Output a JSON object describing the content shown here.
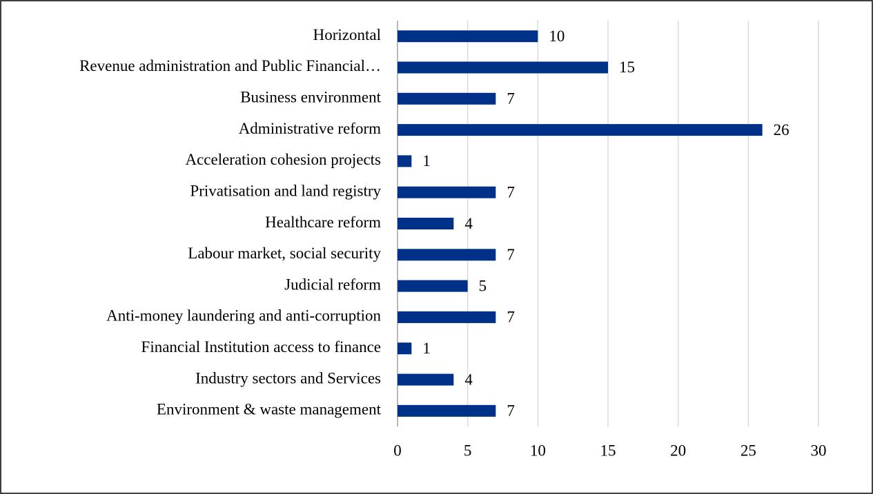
{
  "chart_data": {
    "type": "barh",
    "categories": [
      "Horizontal",
      "Revenue administration and Public Financial…",
      "Business environment",
      "Administrative reform",
      "Acceleration cohesion projects",
      "Privatisation and land registry",
      "Healthcare reform",
      "Labour market, social security",
      "Judicial reform",
      "Anti-money laundering and anti-corruption",
      "Financial Institution access to finance",
      "Industry sectors and Services",
      "Environment & waste management"
    ],
    "values": [
      10,
      15,
      7,
      26,
      1,
      7,
      4,
      7,
      5,
      7,
      1,
      4,
      7
    ],
    "color": "#003189",
    "xlim": [
      0,
      30
    ],
    "xticks": [
      0,
      5,
      10,
      15,
      20,
      25,
      30
    ],
    "grid": true
  }
}
